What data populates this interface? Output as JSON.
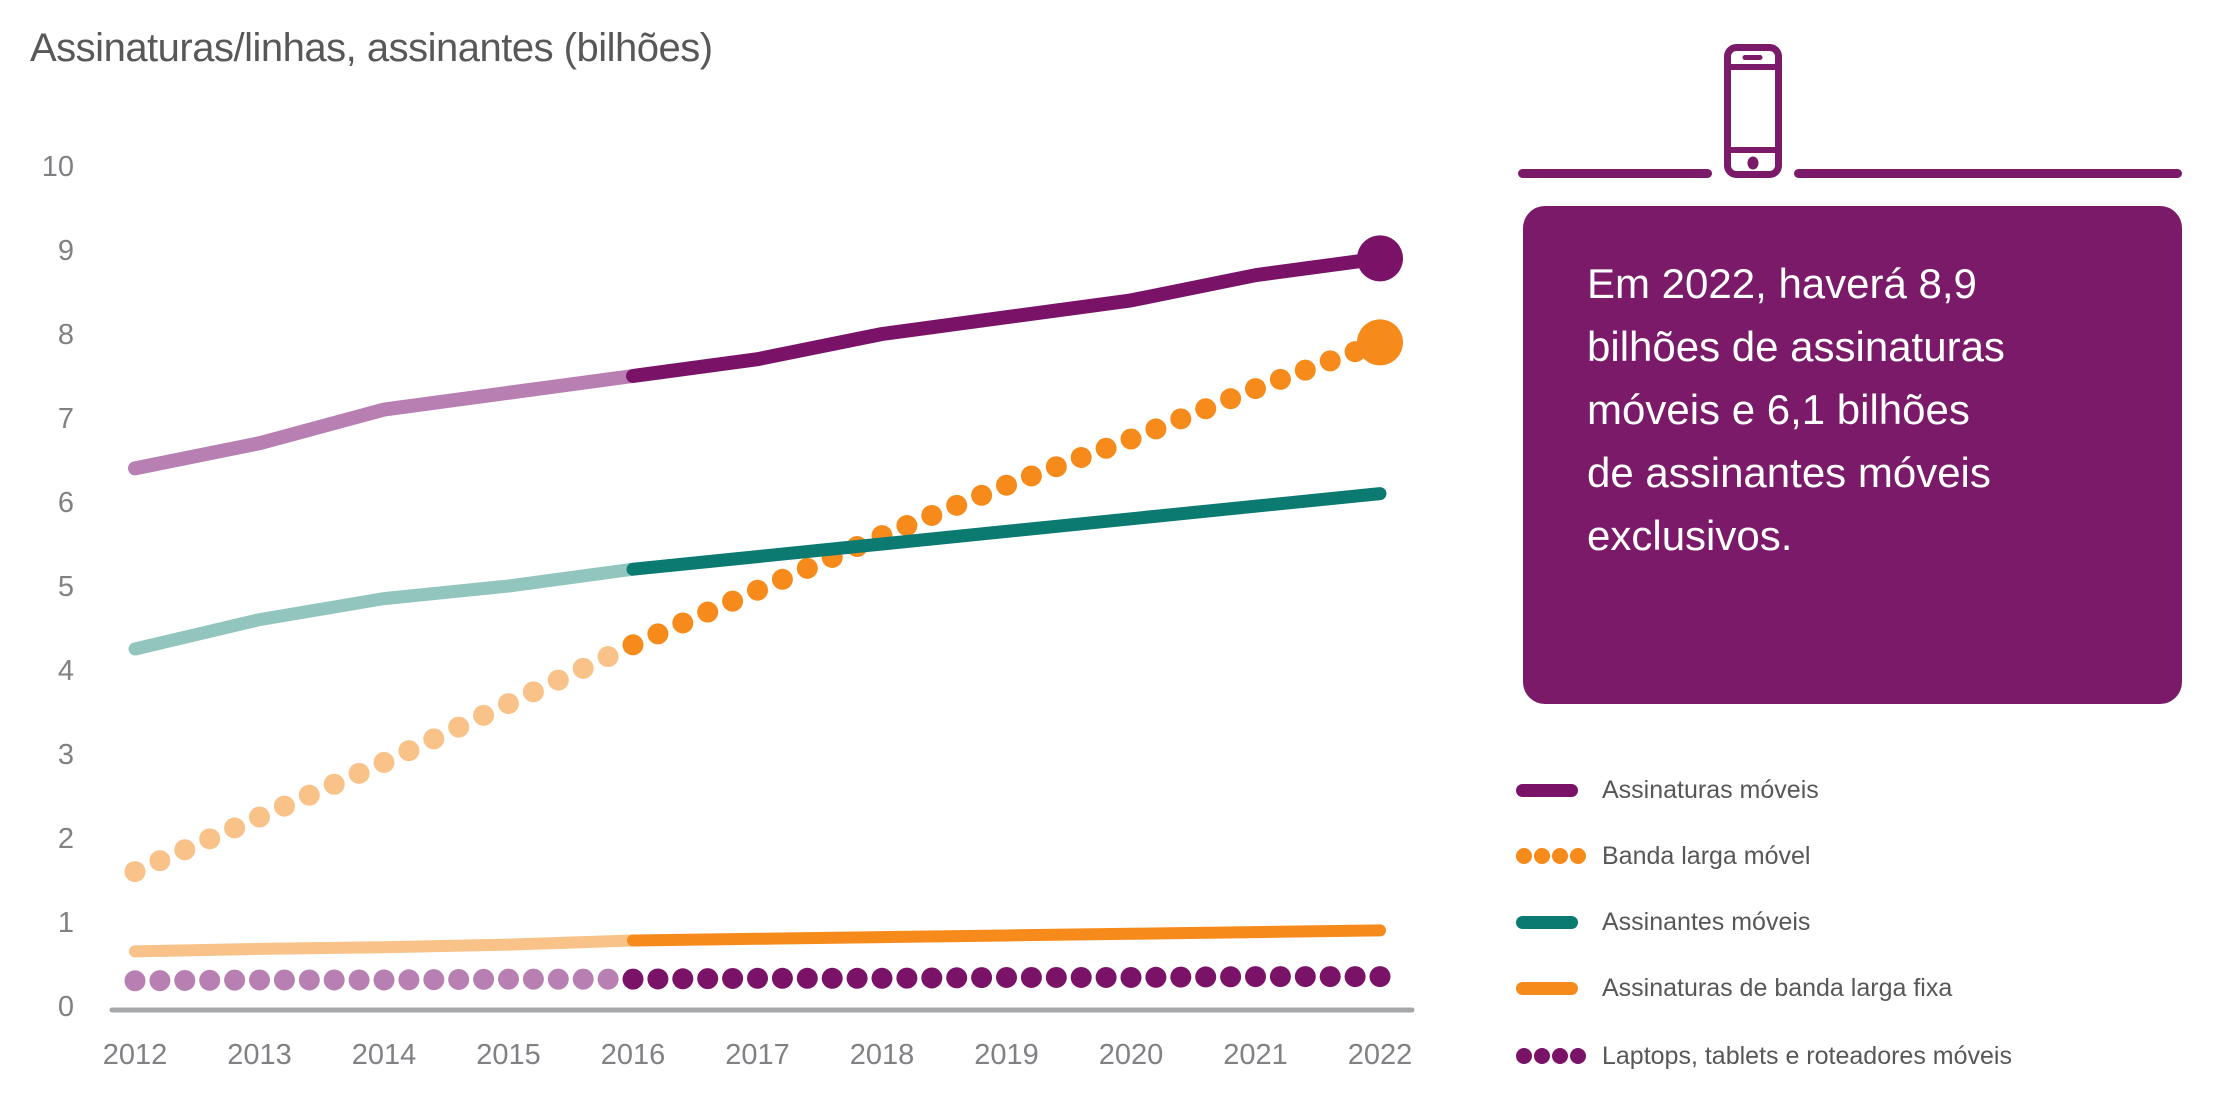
{
  "title": "Assinaturas/linhas, assinantes (bilhões)",
  "callout": {
    "text": "Em 2022, haverá 8,9 bilhões de assinaturas móveis e 6,1 bilhões de assinantes móveis exclusivos."
  },
  "icons": {
    "header_icon": "smartphone-icon"
  },
  "palette": {
    "purple_dark": "#7A1367",
    "purple_light": "#B77FB2",
    "teal_dark": "#0B7A70",
    "teal_light": "#92C5BD",
    "orange_bright": "#F68B1C",
    "orange_light": "#F8C289",
    "box_purple": "#7A1A68",
    "axis_line": "#A6A7A9",
    "tick_text": "#808184",
    "title_text": "#58585A",
    "legend_text": "#565759"
  },
  "chart_data": {
    "type": "line",
    "title": "Assinaturas/linhas, assinantes (bilhões)",
    "x": [
      2012,
      2013,
      2014,
      2015,
      2016,
      2017,
      2018,
      2019,
      2020,
      2021,
      2022
    ],
    "xlabel": "",
    "ylabel": "Assinaturas/linhas, assinantes (bilhões)",
    "ylim": [
      0,
      10
    ],
    "yticks": [
      0,
      1,
      2,
      3,
      4,
      5,
      6,
      7,
      8,
      9,
      10
    ],
    "grid": false,
    "legend_position": "right",
    "forecast_split_year": 2016,
    "series": [
      {
        "name": "Assinaturas móveis",
        "style": "solid",
        "stroke": 14,
        "end_marker": true,
        "color": "#7A1367",
        "color_history": "#B77FB2",
        "values": [
          6.4,
          6.7,
          7.1,
          7.3,
          7.5,
          7.7,
          8.0,
          8.2,
          8.4,
          8.7,
          8.9
        ]
      },
      {
        "name": "Banda larga móvel",
        "style": "dotted",
        "dot_r": 10.5,
        "end_marker": true,
        "color": "#F68B1C",
        "color_history": "#F8C289",
        "values": [
          1.6,
          2.25,
          2.9,
          3.6,
          4.3,
          4.95,
          5.6,
          6.2,
          6.75,
          7.35,
          7.9
        ]
      },
      {
        "name": "Assinantes móveis",
        "style": "solid",
        "stroke": 13,
        "end_marker": false,
        "color": "#0B7A70",
        "color_history": "#92C5BD",
        "values": [
          4.25,
          4.6,
          4.85,
          5.0,
          5.2,
          5.35,
          5.5,
          5.65,
          5.8,
          5.95,
          6.1
        ]
      },
      {
        "name": "Assinaturas de banda larga fixa",
        "style": "solid",
        "stroke": 12,
        "end_marker": false,
        "color": "#F68B1C",
        "color_history": "#F8C289",
        "values": [
          0.65,
          0.68,
          0.7,
          0.73,
          0.78,
          0.8,
          0.82,
          0.84,
          0.86,
          0.88,
          0.9
        ]
      },
      {
        "name": "Laptops, tablets e roteadores móveis",
        "style": "dotted",
        "dot_r": 10.5,
        "end_marker": false,
        "color": "#7A1367",
        "color_history": "#B77FB2",
        "values": [
          0.3,
          0.31,
          0.31,
          0.32,
          0.32,
          0.33,
          0.33,
          0.34,
          0.34,
          0.35,
          0.35
        ]
      }
    ],
    "annotations": {
      "mobile_subscriptions_2022": "8,9",
      "unique_mobile_subscribers_2022": "6,1"
    }
  },
  "legend": {
    "items": [
      {
        "label": "Assinaturas móveis",
        "swatch": "line",
        "color": "#7A1367"
      },
      {
        "label": "Banda larga móvel",
        "swatch": "dots",
        "color": "#F68B1C"
      },
      {
        "label": "Assinantes móveis",
        "swatch": "line",
        "color": "#0B7A70"
      },
      {
        "label": "Assinaturas de banda larga fixa",
        "swatch": "line",
        "color": "#F68B1C"
      },
      {
        "label": "Laptops, tablets e roteadores móveis",
        "swatch": "dots",
        "color": "#7A1367"
      }
    ]
  }
}
